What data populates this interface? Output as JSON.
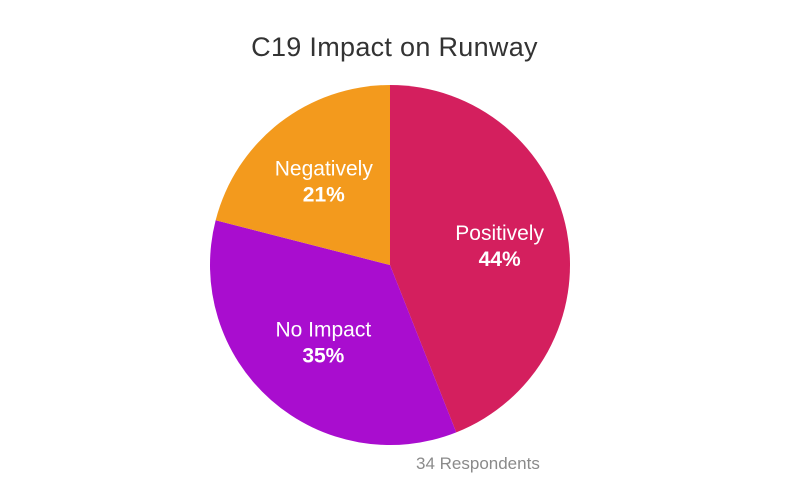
{
  "chart_data": {
    "type": "pie",
    "title": "C19 Impact on Runway",
    "slices": [
      {
        "label": "Positively",
        "value": 44,
        "value_label": "44%",
        "color": "#d41f5e"
      },
      {
        "label": "No Impact",
        "value": 35,
        "value_label": "35%",
        "color": "#a90dcf"
      },
      {
        "label": "Negatively",
        "value": 21,
        "value_label": "21%",
        "color": "#f39a1d"
      }
    ],
    "start_angle_deg": 0,
    "direction": "clockwise",
    "legend": "none",
    "footnote": "34 Respondents"
  }
}
